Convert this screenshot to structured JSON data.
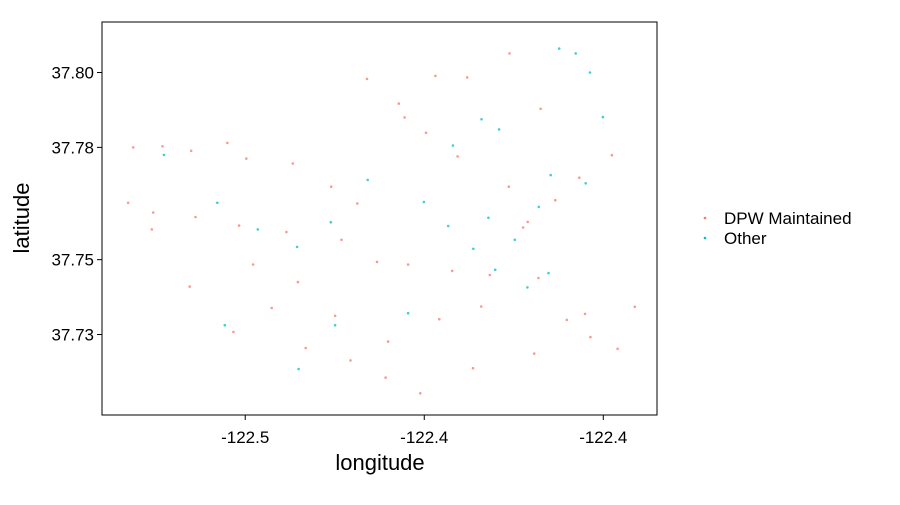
{
  "chart_data": {
    "type": "scatter",
    "title": "",
    "xlabel": "longitude",
    "ylabel": "latitude",
    "xlim": [
      -122.515,
      -122.36
    ],
    "ylim": [
      37.7085,
      37.8135
    ],
    "x_ticks": [
      {
        "value": -122.475,
        "label": "-122.5"
      },
      {
        "value": -122.425,
        "label": "-122.4"
      },
      {
        "value": -122.375,
        "label": "-122.4"
      }
    ],
    "y_ticks": [
      {
        "value": 37.73,
        "label": "37.73"
      },
      {
        "value": 37.75,
        "label": "37.75"
      },
      {
        "value": 37.78,
        "label": "37.78"
      },
      {
        "value": 37.8,
        "label": "37.80"
      }
    ],
    "grid": false,
    "legend": {
      "position": "right",
      "entries": [
        {
          "label": "DPW Maintained",
          "color": "#F8766D"
        },
        {
          "label": "Other",
          "color": "#00BFC4"
        }
      ]
    },
    "series": [
      {
        "name": "DPW Maintained",
        "color": "#F8766D",
        "x": [
          -122.5063,
          -122.4981,
          -122.4901,
          -122.48,
          -122.4747,
          -122.4617,
          -122.451,
          -122.4437,
          -122.4305,
          -122.4219,
          -122.413,
          -122.4012,
          -122.3925,
          -122.5007,
          -122.4889,
          -122.4767,
          -122.4635,
          -122.4481,
          -122.4382,
          -122.4295,
          -122.4172,
          -122.4067,
          -122.3931,
          -122.3852,
          -122.3786,
          -122.371,
          -122.3662,
          -122.3801,
          -122.3943,
          -122.4114,
          -122.4261,
          -122.4358,
          -122.4456,
          -122.4581,
          -122.4676,
          -122.4783,
          -122.4905,
          -122.5011,
          -122.5077,
          -122.4728,
          -122.4603,
          -122.4499,
          -122.4351,
          -122.4208,
          -122.4091,
          -122.3961,
          -122.3884,
          -122.3817,
          -122.3726,
          -122.4157,
          -122.4245,
          -122.4321,
          -122.441,
          -122.4014,
          -122.3974
        ],
        "y": [
          37.78,
          37.7803,
          37.7791,
          37.7812,
          37.777,
          37.7757,
          37.7695,
          37.765,
          37.788,
          37.7991,
          37.7987,
          37.8051,
          37.7903,
          37.7626,
          37.7614,
          37.7591,
          37.7574,
          37.7553,
          37.7494,
          37.7487,
          37.747,
          37.7459,
          37.7451,
          37.7339,
          37.7293,
          37.7262,
          37.7374,
          37.7355,
          37.7249,
          37.721,
          37.7143,
          37.7185,
          37.7231,
          37.7264,
          37.7371,
          37.7307,
          37.7428,
          37.7581,
          37.7652,
          37.7487,
          37.744,
          37.735,
          37.7281,
          37.7341,
          37.7375,
          37.7601,
          37.7659,
          37.7719,
          37.7779,
          37.7776,
          37.7839,
          37.7917,
          37.7983,
          37.7695,
          37.7586
        ]
      },
      {
        "name": "Other",
        "color": "#00BFC4",
        "x": [
          -122.4977,
          -122.4828,
          -122.4715,
          -122.4605,
          -122.4511,
          -122.4408,
          -122.4251,
          -122.4183,
          -122.4113,
          -122.4052,
          -122.3997,
          -122.393,
          -122.3897,
          -122.3873,
          -122.3827,
          -122.3787,
          -122.3751,
          -122.4041,
          -122.409,
          -122.417,
          -122.4295,
          -122.4499,
          -122.4601,
          -122.4807,
          -122.3903,
          -122.3962,
          -122.4071,
          -122.3799
        ],
        "y": [
          37.778,
          37.7652,
          37.7581,
          37.7534,
          37.76,
          37.7713,
          37.7654,
          37.759,
          37.7529,
          37.7473,
          37.7553,
          37.7641,
          37.7726,
          37.8064,
          37.8051,
          37.8,
          37.7881,
          37.7848,
          37.7875,
          37.7805,
          37.7357,
          37.7325,
          37.7208,
          37.7325,
          37.7464,
          37.7426,
          37.7612,
          37.7704
        ]
      }
    ]
  }
}
